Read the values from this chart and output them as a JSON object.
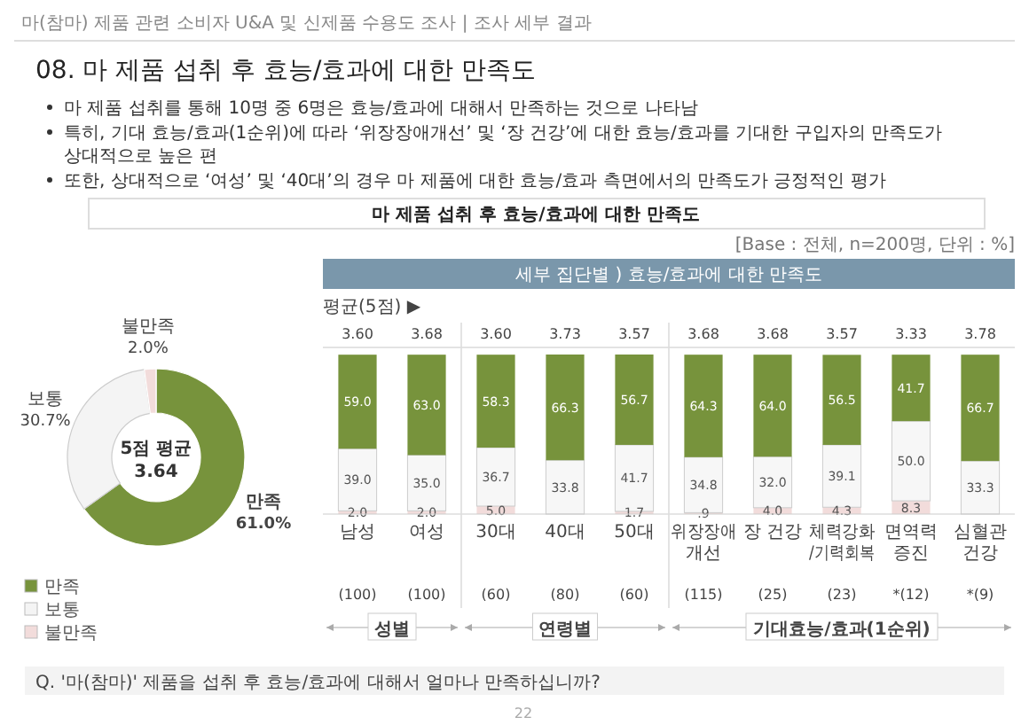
{
  "chart_data": [
    {
      "type": "other",
      "title": "08. 마 제품 섭취 후 효능/효과에 대한 만족도",
      "subtitle": "마(참마) 제품 관련 소비자 U&A 및 신제품 수용도 조사 | 조사 세부 결과",
      "annotations": [
        "마 제품 섭취를 통해 10명 중 6명은 효능/효과에 대해서 만족하는 것으로 나타남",
        "특히, 기대 효능/효과(1순위)에 따라 ‘위장장애개선’ 및 ‘장 건강’에 대한 효능/효과를 기대한 구입자의 만족도가 상대적으로 높은 편",
        "또한, 상대적으로 ‘여성’ 및 ‘40대’의 경우 마 제품에 대한 효능/효과 측면에서의 만족도가 긍정적인 평가",
        "마 제품 섭취 후 효능/효과에 대한 만족도",
        "[Base : 전체, n=200명, 단위 : %]",
        "Q. '마(참마)' 제품을 섭취 후 효능/효과에 대해서 얼마나 만족하십니까?",
        "22"
      ]
    },
    {
      "type": "donut",
      "categories": [
        "만족",
        "보통",
        "불만족"
      ],
      "values": [
        61.0,
        30.7,
        2.0
      ],
      "colors": [
        "#77933c",
        "#f4f4f4",
        "#f2dcdb"
      ],
      "value_labels": [
        "61.0%",
        "30.7%",
        "2.0%"
      ],
      "legend": "bottom left",
      "annotations": [
        "5점 평균",
        "3.64"
      ]
    },
    {
      "type": "bar",
      "title": "세부 집단별 ) 효능/효과에 대한 만족도",
      "stacked": true,
      "categories": [
        "남성",
        "여성",
        "30대",
        "40대",
        "50대",
        "위장장애 개선",
        "장 건강",
        "체력강화/기력회복",
        "면역력 증진",
        "심혈관 건강"
      ],
      "series": [
        {
          "color": "#f2dcdb",
          "values": [
            2.0,
            2.0,
            5.0,
            null,
            1.7,
            0.9,
            4.0,
            4.3,
            8.3,
            null
          ],
          "value_labels": [
            "2.0",
            "2.0",
            "5.0",
            null,
            "1.7",
            ".9",
            "4.0",
            "4.3",
            "8.3",
            null
          ]
        },
        {
          "color": "#f7f7f7",
          "values": [
            39.0,
            35.0,
            36.7,
            33.8,
            41.7,
            34.8,
            32.0,
            39.1,
            50.0,
            33.3
          ],
          "value_labels": [
            "39.0",
            "35.0",
            "36.7",
            "33.8",
            "41.7",
            "34.8",
            "32.0",
            "39.1",
            "50.0",
            "33.3"
          ]
        },
        {
          "color": "#77933c",
          "values": [
            59.0,
            63.0,
            58.3,
            66.3,
            56.7,
            64.3,
            64.0,
            56.5,
            41.7,
            66.7
          ],
          "value_labels": [
            "59.0",
            "63.0",
            "58.3",
            "66.3",
            "56.7",
            "64.3",
            "64.0",
            "56.5",
            "41.7",
            "66.7"
          ]
        }
      ],
      "annotations": [
        "평균(5점) ▶",
        "3.60",
        "3.68",
        "3.60",
        "3.73",
        "3.57",
        "3.68",
        "3.68",
        "3.57",
        "3.33",
        "3.78",
        "(100)",
        "(100)",
        "(60)",
        "(80)",
        "(60)",
        "(115)",
        "(25)",
        "(23)",
        "*(12)",
        "*(9)",
        "성별",
        "연령별",
        "기대효능/효과(1순위)"
      ]
    }
  ]
}
